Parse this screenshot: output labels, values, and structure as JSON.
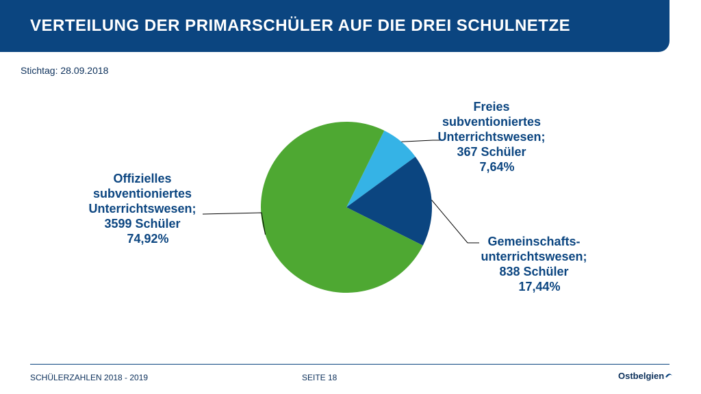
{
  "header": {
    "title": "VERTEILUNG DER PRIMARSCHÜLER AUF DIE DREI SCHULNETZE"
  },
  "subtitle": "Stichtag: 28.09.2018",
  "footer": {
    "left": "SCHÜLERZAHLEN 2018 - 2019",
    "page": "SEITE 18",
    "logo": "Ostbelgien"
  },
  "colors": {
    "header": "#0b4580",
    "label": "#0b4580"
  },
  "chart_data": {
    "type": "pie",
    "slices": [
      {
        "label_lines": [
          "Freies",
          "subventioniertes",
          "Unterrichtswesen;",
          "367 Schüler",
          "7,64%"
        ],
        "value": 367,
        "percent": 7.64,
        "color": "#35b3e6"
      },
      {
        "label_lines": [
          "Gemeinschafts-",
          "unterrichtswesen;",
          "838 Schüler",
          "17,44%"
        ],
        "value": 838,
        "percent": 17.44,
        "color": "#0b4580"
      },
      {
        "label_lines": [
          "Offizielles",
          "subventioniertes",
          "Unterrichtswesen;",
          "3599 Schüler",
          "74,92%"
        ],
        "value": 3599,
        "percent": 74.92,
        "color": "#4ea832"
      }
    ]
  }
}
